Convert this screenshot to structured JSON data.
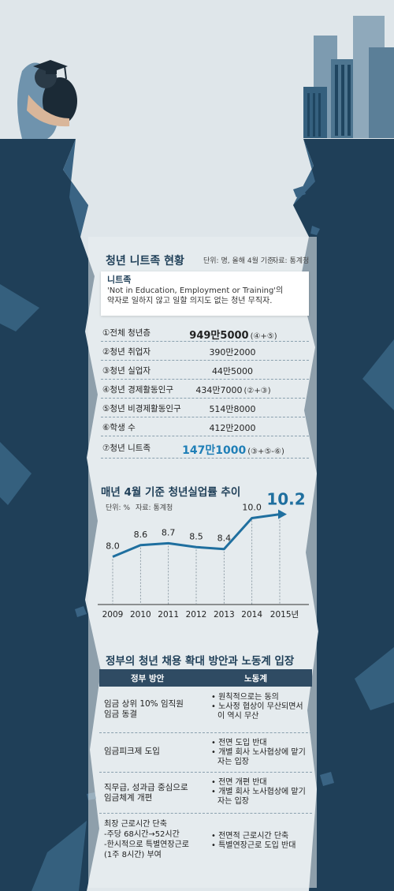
{
  "neet": {
    "title": "청년 니트족 현황",
    "unit_note": "단위: 명, 올해 4월 기준.",
    "source": "자료: 통계청",
    "definition_term": "니트족",
    "definition_line1": "'Not in Education, Employment or Training'의",
    "definition_line2": "약자로 일하지 않고 일할 의지도 없는 청년 무직자.",
    "rows": [
      {
        "label": "①전체 청년층",
        "value": "949만5000",
        "formula": "(④+⑤)"
      },
      {
        "label": "②청년 취업자",
        "value": "390만2000",
        "formula": ""
      },
      {
        "label": "③청년 실업자",
        "value": "44만5000",
        "formula": ""
      },
      {
        "label": "④청년 경제활동인구",
        "value": "434만7000",
        "formula": "(②+③)"
      },
      {
        "label": "⑤청년 비경제활동인구",
        "value": "514만8000",
        "formula": ""
      },
      {
        "label": "⑥학생 수",
        "value": "412만2000",
        "formula": ""
      },
      {
        "label": "⑦청년 니트족",
        "value": "147만1000",
        "formula": "(③+⑤-⑥)"
      }
    ]
  },
  "chart_data": {
    "type": "line",
    "title": "매년 4월 기준 청년실업률 추이",
    "unit_note": "단위: %",
    "source": "자료: 통계청",
    "categories": [
      "2009",
      "2010",
      "2011",
      "2012",
      "2013",
      "2014",
      "2015년"
    ],
    "values": [
      8.0,
      8.6,
      8.7,
      8.5,
      8.4,
      10.0,
      10.2
    ],
    "value_labels": [
      "8.0",
      "8.6",
      "8.7",
      "8.5",
      "8.4",
      "10.0",
      "10.2"
    ],
    "ylim": [
      7.0,
      11.0
    ],
    "grid": false,
    "line_color": "#1f6f9f"
  },
  "policy": {
    "title": "정부의 청년 채용 확대 방안과 노동계 입장",
    "head_gov": "정부 방안",
    "head_labor": "노동계",
    "rows": [
      {
        "gov": [
          "임금 상위 10% 임직원",
          "임금 동결"
        ],
        "labor": [
          "• 원칙적으로는 동의",
          "• 노사정 협상이 무산되면서 이 역시 무산"
        ]
      },
      {
        "gov": [
          "임금피크제 도입"
        ],
        "labor": [
          "• 전면 도입 반대",
          "• 개별 회사 노사협상에 맡기자는 입장"
        ]
      },
      {
        "gov": [
          "직무급, 성과급 중심으로",
          "임금체계 개편"
        ],
        "labor": [
          "• 전면 개편 반대",
          "• 개별 회사 노사협상에 맡기자는 입장"
        ]
      },
      {
        "gov": [
          "최장 근로시간 단축",
          "-주당 68시간→52시간",
          "-한시적으로 특별연장근로",
          "(1주 8시간) 부여"
        ],
        "labor": [
          "• 전면적 근로시간 단축",
          "• 특별연장근로 도입 반대"
        ]
      }
    ]
  },
  "colors": {
    "cliff": "#1f3f58",
    "sky": "#dfe6ea",
    "accent": "#1f7fb7",
    "table_head": "#2f4b63"
  }
}
